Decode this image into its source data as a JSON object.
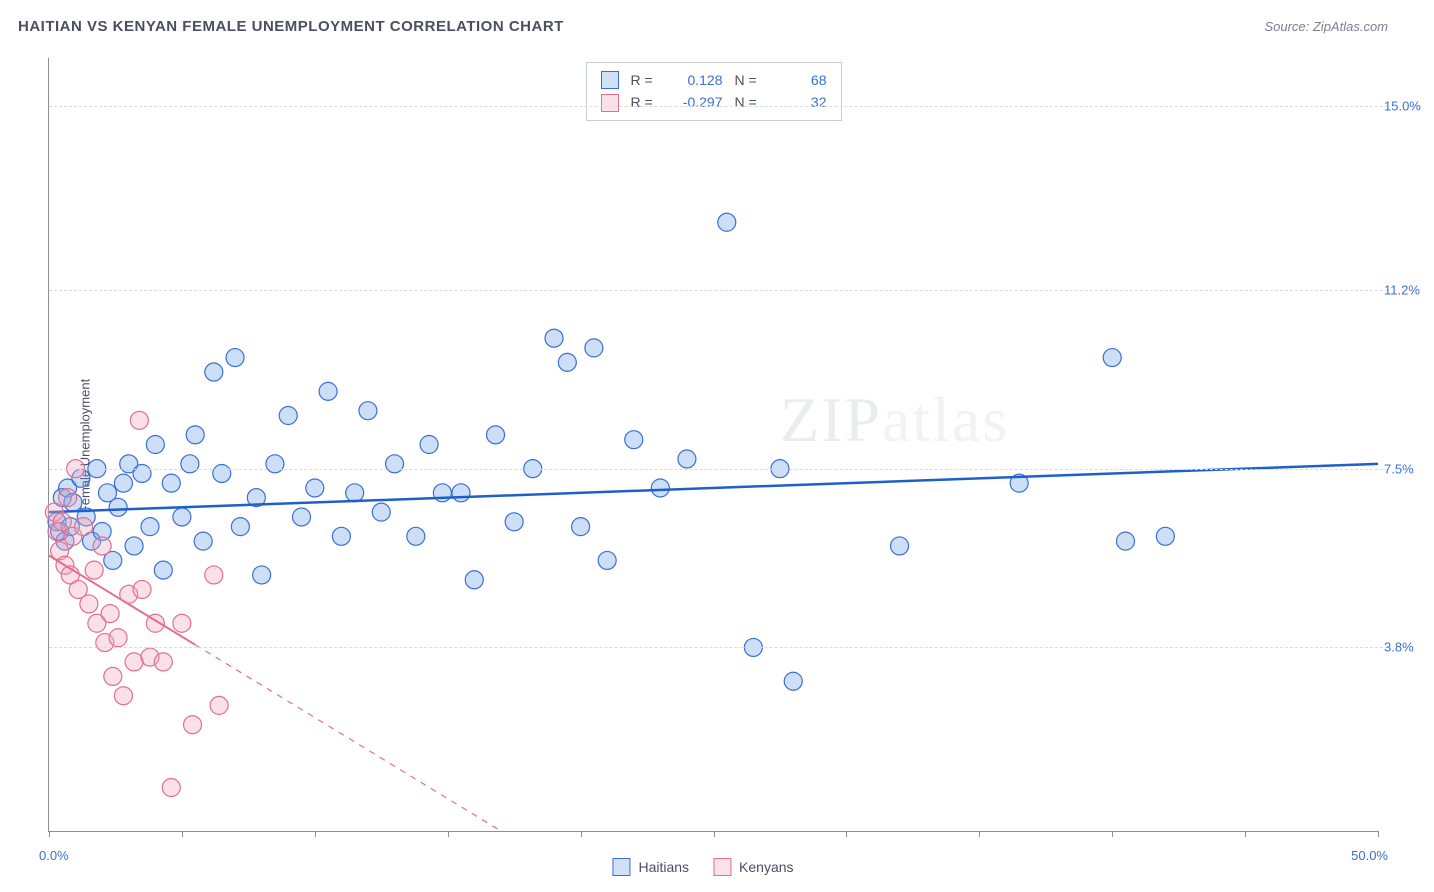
{
  "title": "HAITIAN VS KENYAN FEMALE UNEMPLOYMENT CORRELATION CHART",
  "source": "Source: ZipAtlas.com",
  "watermark": "ZIPatlas",
  "ylabel": "Female Unemployment",
  "chart": {
    "type": "scatter",
    "background_color": "#ffffff",
    "grid_color": "#d8dbe0",
    "axis_color": "#8a8f9a",
    "xlim": [
      0,
      50
    ],
    "ylim": [
      0,
      16
    ],
    "xticks": [
      0,
      5,
      10,
      15,
      20,
      25,
      30,
      35,
      40,
      45,
      50
    ],
    "xlim_labels": [
      "0.0%",
      "50.0%"
    ],
    "yticks": [
      {
        "v": 3.8,
        "label": "3.8%"
      },
      {
        "v": 7.5,
        "label": "7.5%"
      },
      {
        "v": 11.2,
        "label": "11.2%"
      },
      {
        "v": 15.0,
        "label": "15.0%"
      }
    ],
    "marker_radius": 9,
    "marker_stroke_width": 1.2,
    "marker_fill_opacity": 0.35,
    "title_fontsize": 15,
    "label_fontsize": 13,
    "tick_fontsize": 13,
    "tick_color": "#3b6fd6"
  },
  "series": [
    {
      "name": "Haitians",
      "color": "#6fa3e8",
      "stroke": "#3b6fd6",
      "line_color": "#1f5fc9",
      "line_width": 2.5,
      "R": "0.128",
      "N": "68",
      "trend": {
        "x1": 0,
        "y1": 6.6,
        "x2": 50,
        "y2": 7.6,
        "dash": false
      },
      "points": [
        [
          0.3,
          6.4
        ],
        [
          0.4,
          6.2
        ],
        [
          0.5,
          6.9
        ],
        [
          0.6,
          6.0
        ],
        [
          0.7,
          7.1
        ],
        [
          0.8,
          6.3
        ],
        [
          0.9,
          6.8
        ],
        [
          1.2,
          7.3
        ],
        [
          1.4,
          6.5
        ],
        [
          1.6,
          6.0
        ],
        [
          1.8,
          7.5
        ],
        [
          2.0,
          6.2
        ],
        [
          2.2,
          7.0
        ],
        [
          2.4,
          5.6
        ],
        [
          2.6,
          6.7
        ],
        [
          2.8,
          7.2
        ],
        [
          3.0,
          7.6
        ],
        [
          3.2,
          5.9
        ],
        [
          3.5,
          7.4
        ],
        [
          3.8,
          6.3
        ],
        [
          4.0,
          8.0
        ],
        [
          4.3,
          5.4
        ],
        [
          4.6,
          7.2
        ],
        [
          5.0,
          6.5
        ],
        [
          5.3,
          7.6
        ],
        [
          5.5,
          8.2
        ],
        [
          5.8,
          6.0
        ],
        [
          6.2,
          9.5
        ],
        [
          6.5,
          7.4
        ],
        [
          7.0,
          9.8
        ],
        [
          7.2,
          6.3
        ],
        [
          7.8,
          6.9
        ],
        [
          8.0,
          5.3
        ],
        [
          8.5,
          7.6
        ],
        [
          9.0,
          8.6
        ],
        [
          9.5,
          6.5
        ],
        [
          10.0,
          7.1
        ],
        [
          10.5,
          9.1
        ],
        [
          11.0,
          6.1
        ],
        [
          11.5,
          7.0
        ],
        [
          12.0,
          8.7
        ],
        [
          12.5,
          6.6
        ],
        [
          13.0,
          7.6
        ],
        [
          13.8,
          6.1
        ],
        [
          14.3,
          8.0
        ],
        [
          14.8,
          7.0
        ],
        [
          15.5,
          7.0
        ],
        [
          16.0,
          5.2
        ],
        [
          16.8,
          8.2
        ],
        [
          17.5,
          6.4
        ],
        [
          18.2,
          7.5
        ],
        [
          19.0,
          10.2
        ],
        [
          19.5,
          9.7
        ],
        [
          20.0,
          6.3
        ],
        [
          20.5,
          10.0
        ],
        [
          21.0,
          5.6
        ],
        [
          22.0,
          8.1
        ],
        [
          23.0,
          7.1
        ],
        [
          24.0,
          7.7
        ],
        [
          25.5,
          12.6
        ],
        [
          26.5,
          3.8
        ],
        [
          27.5,
          7.5
        ],
        [
          28.0,
          3.1
        ],
        [
          32.0,
          5.9
        ],
        [
          36.5,
          7.2
        ],
        [
          40.5,
          6.0
        ],
        [
          42.0,
          6.1
        ],
        [
          40.0,
          9.8
        ]
      ]
    },
    {
      "name": "Kenyans",
      "color": "#f2a8ba",
      "stroke": "#e36f8f",
      "line_color": "#e36f8f",
      "line_width": 2,
      "R": "-0.297",
      "N": "32",
      "trend": {
        "x1": 0,
        "y1": 5.7,
        "x2": 17,
        "y2": 0,
        "dash": true,
        "solid_until_x": 5.5
      },
      "points": [
        [
          0.2,
          6.6
        ],
        [
          0.3,
          6.2
        ],
        [
          0.4,
          5.8
        ],
        [
          0.5,
          6.4
        ],
        [
          0.6,
          5.5
        ],
        [
          0.7,
          6.9
        ],
        [
          0.8,
          5.3
        ],
        [
          0.9,
          6.1
        ],
        [
          1.0,
          7.5
        ],
        [
          1.1,
          5.0
        ],
        [
          1.3,
          6.3
        ],
        [
          1.5,
          4.7
        ],
        [
          1.7,
          5.4
        ],
        [
          1.8,
          4.3
        ],
        [
          2.0,
          5.9
        ],
        [
          2.1,
          3.9
        ],
        [
          2.3,
          4.5
        ],
        [
          2.4,
          3.2
        ],
        [
          2.6,
          4.0
        ],
        [
          2.8,
          2.8
        ],
        [
          3.0,
          4.9
        ],
        [
          3.2,
          3.5
        ],
        [
          3.4,
          8.5
        ],
        [
          3.5,
          5.0
        ],
        [
          3.8,
          3.6
        ],
        [
          4.0,
          4.3
        ],
        [
          4.3,
          3.5
        ],
        [
          4.6,
          0.9
        ],
        [
          5.0,
          4.3
        ],
        [
          5.4,
          2.2
        ],
        [
          6.2,
          5.3
        ],
        [
          6.4,
          2.6
        ]
      ]
    }
  ],
  "stats_labels": {
    "R": "R =",
    "N": "N ="
  },
  "legend": [
    "Haitians",
    "Kenyans"
  ]
}
